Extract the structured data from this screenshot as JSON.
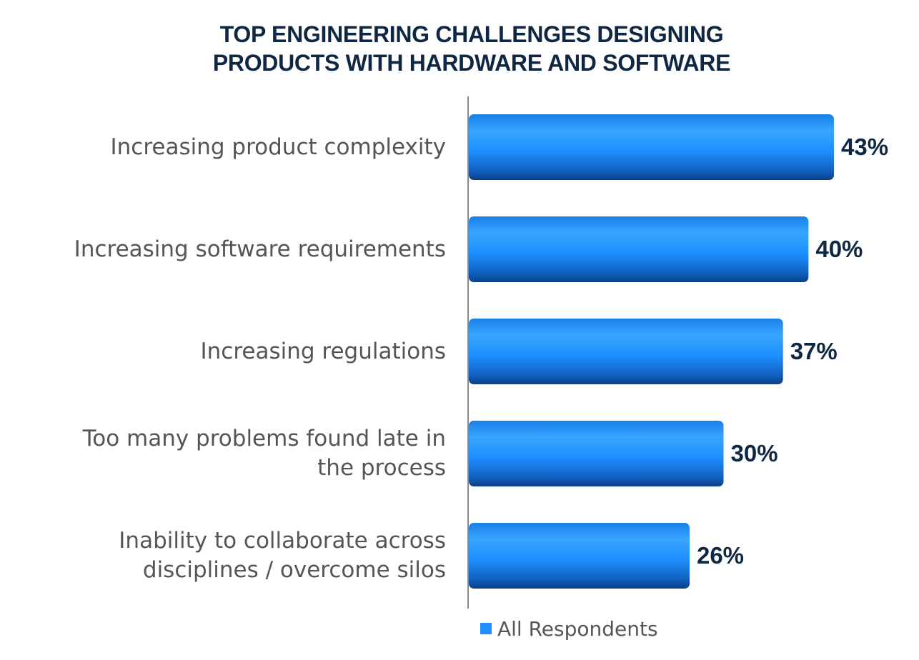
{
  "title_lines": [
    "TOP ENGINEERING CHALLENGES DESIGNING",
    "PRODUCTS WITH HARDWARE AND SOFTWARE"
  ],
  "chart_data": {
    "type": "bar",
    "orientation": "horizontal",
    "title": "TOP ENGINEERING CHALLENGES DESIGNING PRODUCTS WITH HARDWARE AND SOFTWARE",
    "categories": [
      [
        "Increasing product complexity"
      ],
      [
        "Increasing software requirements"
      ],
      [
        "Increasing regulations"
      ],
      [
        "Too many problems found late in",
        "the process"
      ],
      [
        "Inability to collaborate across",
        "disciplines / overcome silos"
      ]
    ],
    "series": [
      {
        "name": "All Respondents",
        "values": [
          43,
          40,
          37,
          30,
          26
        ]
      }
    ],
    "value_labels": [
      "43%",
      "40%",
      "37%",
      "30%",
      "26%"
    ],
    "xlim": [
      0,
      50
    ],
    "grid": false,
    "legend": {
      "position": "bottom",
      "label": "All Respondents"
    },
    "colors": {
      "bar_light": "#3aa8ff",
      "bar_mid": "#1e90ff",
      "bar_dark": "#0b3f86",
      "text_dark": "#0f2743"
    }
  }
}
